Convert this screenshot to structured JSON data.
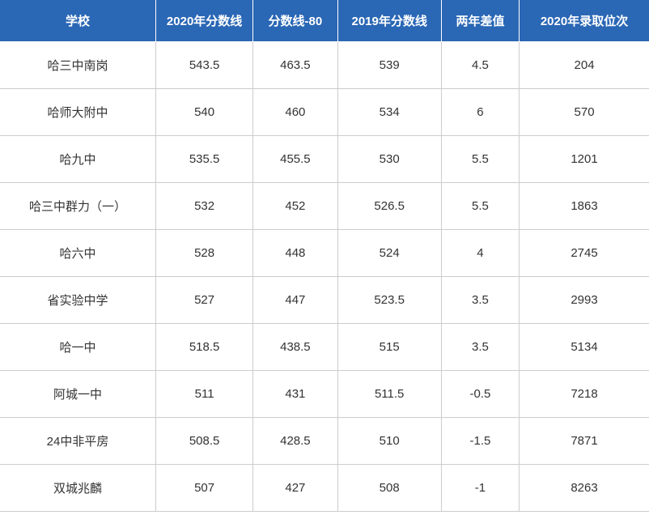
{
  "table": {
    "header_bg": "#2a67b5",
    "header_text_color": "#ffffff",
    "cell_text_color": "#333333",
    "border_color": "#cccccc",
    "font_size_header": 15,
    "font_size_cell": 15,
    "columns": [
      {
        "key": "school",
        "label": "学校",
        "width": "24%"
      },
      {
        "key": "score2020",
        "label": "2020年分数线",
        "width": "15%"
      },
      {
        "key": "minus80",
        "label": "分数线-80",
        "width": "13%"
      },
      {
        "key": "score2019",
        "label": "2019年分数线",
        "width": "16%"
      },
      {
        "key": "diff",
        "label": "两年差值",
        "width": "12%"
      },
      {
        "key": "rank2020",
        "label": "2020年录取位次",
        "width": "20%"
      }
    ],
    "rows": [
      {
        "school": "哈三中南岗",
        "score2020": "543.5",
        "minus80": "463.5",
        "score2019": "539",
        "diff": "4.5",
        "rank2020": "204"
      },
      {
        "school": "哈师大附中",
        "score2020": "540",
        "minus80": "460",
        "score2019": "534",
        "diff": "6",
        "rank2020": "570"
      },
      {
        "school": "哈九中",
        "score2020": "535.5",
        "minus80": "455.5",
        "score2019": "530",
        "diff": "5.5",
        "rank2020": "1201"
      },
      {
        "school": "哈三中群力（一）",
        "score2020": "532",
        "minus80": "452",
        "score2019": "526.5",
        "diff": "5.5",
        "rank2020": "1863"
      },
      {
        "school": "哈六中",
        "score2020": "528",
        "minus80": "448",
        "score2019": "524",
        "diff": "4",
        "rank2020": "2745"
      },
      {
        "school": "省实验中学",
        "score2020": "527",
        "minus80": "447",
        "score2019": "523.5",
        "diff": "3.5",
        "rank2020": "2993"
      },
      {
        "school": "哈一中",
        "score2020": "518.5",
        "minus80": "438.5",
        "score2019": "515",
        "diff": "3.5",
        "rank2020": "5134"
      },
      {
        "school": "阿城一中",
        "score2020": "511",
        "minus80": "431",
        "score2019": "511.5",
        "diff": "-0.5",
        "rank2020": "7218"
      },
      {
        "school": "24中非平房",
        "score2020": "508.5",
        "minus80": "428.5",
        "score2019": "510",
        "diff": "-1.5",
        "rank2020": "7871"
      },
      {
        "school": "双城兆麟",
        "score2020": "507",
        "minus80": "427",
        "score2019": "508",
        "diff": "-1",
        "rank2020": "8263"
      }
    ]
  }
}
